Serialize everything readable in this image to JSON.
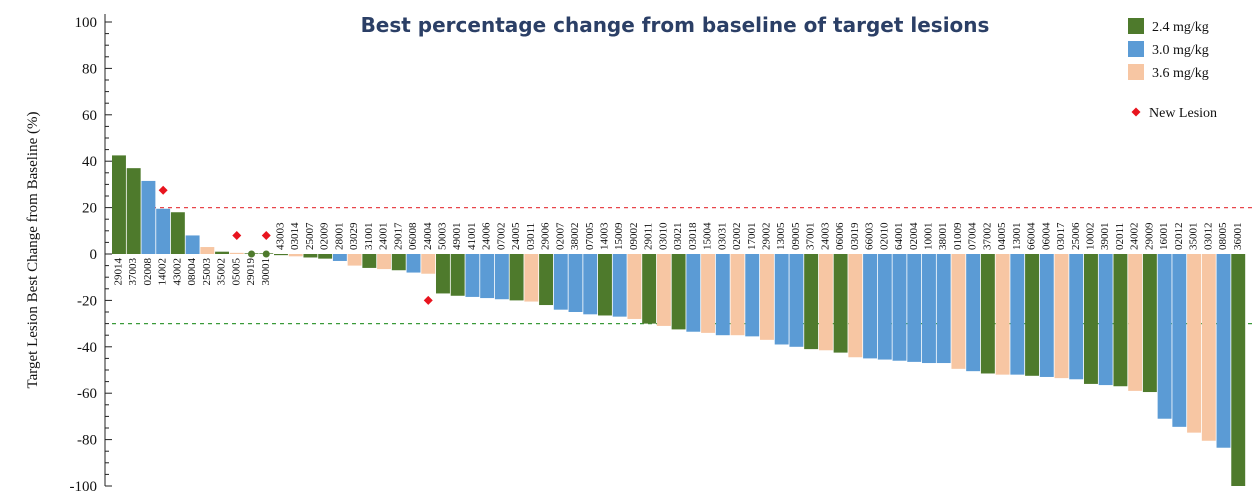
{
  "chart_data": {
    "type": "bar",
    "title": "Best percentage change from baseline of target lesions",
    "ylabel": "Target Lesion Best Change from Baseline (%)",
    "ylim": [
      -100,
      100
    ],
    "yticks": [
      100,
      80,
      60,
      40,
      20,
      0,
      -20,
      -40,
      -60,
      -80,
      -100
    ],
    "reference_lines": [
      {
        "y": 20,
        "color": "#e8464b"
      },
      {
        "y": -30,
        "color": "#3a9a3a"
      }
    ],
    "colors": {
      "2.4": "#4e7a2c",
      "3.0": "#5b9bd5",
      "3.6": "#f7c6a3",
      "new_lesion": "#e8141e",
      "small_marker": "#4e7a2c"
    },
    "legend": {
      "placement": "top-right",
      "items": [
        {
          "key": "2.4",
          "label": "2.4 mg/kg"
        },
        {
          "key": "3.0",
          "label": "3.0 mg/kg"
        },
        {
          "key": "3.6",
          "label": "3.6 mg/kg"
        }
      ],
      "marker_label": "New Lesion"
    },
    "bars": [
      {
        "id": "29014",
        "value": 42.5,
        "dose": "2.4"
      },
      {
        "id": "37003",
        "value": 37,
        "dose": "2.4"
      },
      {
        "id": "02008",
        "value": 31.5,
        "dose": "3.0"
      },
      {
        "id": "14002",
        "value": 19.5,
        "dose": "3.0",
        "new_lesion": 27.5
      },
      {
        "id": "43002",
        "value": 18,
        "dose": "2.4"
      },
      {
        "id": "08004",
        "value": 8,
        "dose": "3.0"
      },
      {
        "id": "25003",
        "value": 3,
        "dose": "3.6"
      },
      {
        "id": "35002",
        "value": 1,
        "dose": "2.4"
      },
      {
        "id": "05005",
        "value": 0.5,
        "dose": "3.6",
        "new_lesion": 8
      },
      {
        "id": "29019",
        "value": 0.3,
        "dose": "2.4",
        "marker": 0
      },
      {
        "id": "30001",
        "value": 0.3,
        "dose": "2.4",
        "marker": 0,
        "new_lesion": 8
      },
      {
        "id": "43003",
        "value": -0.5,
        "dose": "2.4"
      },
      {
        "id": "03014",
        "value": -1,
        "dose": "3.6"
      },
      {
        "id": "25007",
        "value": -1.5,
        "dose": "2.4"
      },
      {
        "id": "02009",
        "value": -2,
        "dose": "2.4"
      },
      {
        "id": "28001",
        "value": -3,
        "dose": "3.0"
      },
      {
        "id": "03029",
        "value": -5,
        "dose": "3.6"
      },
      {
        "id": "31001",
        "value": -6,
        "dose": "2.4"
      },
      {
        "id": "24001",
        "value": -6.5,
        "dose": "3.6"
      },
      {
        "id": "29017",
        "value": -7,
        "dose": "2.4"
      },
      {
        "id": "06008",
        "value": -8,
        "dose": "3.0"
      },
      {
        "id": "24004",
        "value": -8.5,
        "dose": "3.6",
        "new_lesion": -20
      },
      {
        "id": "50003",
        "value": -17,
        "dose": "2.4"
      },
      {
        "id": "49001",
        "value": -18,
        "dose": "2.4"
      },
      {
        "id": "41001",
        "value": -18.5,
        "dose": "3.0"
      },
      {
        "id": "24006",
        "value": -19,
        "dose": "3.0"
      },
      {
        "id": "07002",
        "value": -19.5,
        "dose": "3.0"
      },
      {
        "id": "24005",
        "value": -20,
        "dose": "2.4"
      },
      {
        "id": "03011",
        "value": -20.5,
        "dose": "3.6"
      },
      {
        "id": "29006",
        "value": -22,
        "dose": "2.4"
      },
      {
        "id": "02007",
        "value": -24,
        "dose": "3.0"
      },
      {
        "id": "38002",
        "value": -25,
        "dose": "3.0"
      },
      {
        "id": "07005",
        "value": -26,
        "dose": "3.0"
      },
      {
        "id": "14003",
        "value": -26.5,
        "dose": "2.4"
      },
      {
        "id": "15009",
        "value": -27,
        "dose": "3.0"
      },
      {
        "id": "09002",
        "value": -28,
        "dose": "3.6"
      },
      {
        "id": "29011",
        "value": -30,
        "dose": "2.4"
      },
      {
        "id": "03010",
        "value": -31,
        "dose": "3.6"
      },
      {
        "id": "03021",
        "value": -32.5,
        "dose": "2.4"
      },
      {
        "id": "03018",
        "value": -33.5,
        "dose": "3.0"
      },
      {
        "id": "15004",
        "value": -34,
        "dose": "3.6"
      },
      {
        "id": "03031",
        "value": -35,
        "dose": "3.0"
      },
      {
        "id": "02002",
        "value": -35,
        "dose": "3.6"
      },
      {
        "id": "17001",
        "value": -35.5,
        "dose": "3.0"
      },
      {
        "id": "29002",
        "value": -37,
        "dose": "3.6"
      },
      {
        "id": "13005",
        "value": -39,
        "dose": "3.0"
      },
      {
        "id": "09005",
        "value": -40,
        "dose": "3.0"
      },
      {
        "id": "37001",
        "value": -41,
        "dose": "2.4"
      },
      {
        "id": "24003",
        "value": -41.5,
        "dose": "3.6"
      },
      {
        "id": "06006",
        "value": -42.5,
        "dose": "2.4"
      },
      {
        "id": "03019",
        "value": -44.5,
        "dose": "3.6"
      },
      {
        "id": "66003",
        "value": -45,
        "dose": "3.0"
      },
      {
        "id": "02010",
        "value": -45.5,
        "dose": "3.0"
      },
      {
        "id": "64001",
        "value": -46,
        "dose": "3.0"
      },
      {
        "id": "02004",
        "value": -46.5,
        "dose": "3.0"
      },
      {
        "id": "10001",
        "value": -47,
        "dose": "3.0"
      },
      {
        "id": "38001",
        "value": -47,
        "dose": "3.0"
      },
      {
        "id": "01009",
        "value": -49.5,
        "dose": "3.6"
      },
      {
        "id": "07004",
        "value": -50.5,
        "dose": "3.0"
      },
      {
        "id": "37002",
        "value": -51.5,
        "dose": "2.4"
      },
      {
        "id": "04005",
        "value": -52,
        "dose": "3.6"
      },
      {
        "id": "13001",
        "value": -52,
        "dose": "3.0"
      },
      {
        "id": "66004",
        "value": -52.5,
        "dose": "2.4"
      },
      {
        "id": "06004",
        "value": -53,
        "dose": "3.0"
      },
      {
        "id": "03017",
        "value": -53.5,
        "dose": "3.6"
      },
      {
        "id": "25006",
        "value": -54,
        "dose": "3.0"
      },
      {
        "id": "10002",
        "value": -56,
        "dose": "2.4"
      },
      {
        "id": "39001",
        "value": -56.5,
        "dose": "3.0"
      },
      {
        "id": "02011",
        "value": -57,
        "dose": "2.4"
      },
      {
        "id": "24002",
        "value": -59,
        "dose": "3.6"
      },
      {
        "id": "29009",
        "value": -59.5,
        "dose": "2.4"
      },
      {
        "id": "16001",
        "value": -71,
        "dose": "3.0"
      },
      {
        "id": "02012",
        "value": -74.5,
        "dose": "3.0"
      },
      {
        "id": "35001",
        "value": -77,
        "dose": "3.6"
      },
      {
        "id": "03012",
        "value": -80.5,
        "dose": "3.6"
      },
      {
        "id": "08005",
        "value": -83.5,
        "dose": "3.0"
      },
      {
        "id": "36001",
        "value": -100,
        "dose": "2.4"
      }
    ]
  }
}
